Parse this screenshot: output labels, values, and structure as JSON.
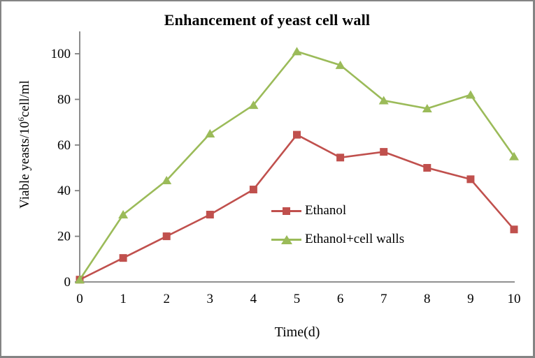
{
  "chart_data": {
    "type": "line",
    "title": "Enhancement of yeast cell wall",
    "xlabel": "Time(d)",
    "ylabel": "Viable yeasts/10⁶cell/ml",
    "ylabel_parts": {
      "prefix": "Viable yeasts/10",
      "sup": "6",
      "suffix": "cell/ml"
    },
    "x": [
      0,
      1,
      2,
      3,
      4,
      5,
      6,
      7,
      8,
      9,
      10
    ],
    "series": [
      {
        "name": "Ethanol",
        "marker": "square",
        "color": "#C0504D",
        "values": [
          1,
          10.5,
          20,
          29.5,
          40.5,
          64.5,
          54.5,
          57,
          50,
          45,
          23
        ]
      },
      {
        "name": "Ethanol+cell walls",
        "marker": "triangle",
        "color": "#9BBB59",
        "values": [
          1,
          29.5,
          44.5,
          65,
          77.5,
          101,
          95,
          79.5,
          76,
          82,
          55
        ]
      }
    ],
    "ylim": [
      0,
      100
    ],
    "y_ticks": [
      0,
      20,
      40,
      60,
      80,
      100
    ],
    "grid": "off",
    "legend_position": "inside-right-middle",
    "axis_color": "#808080",
    "text_color": "#000000"
  }
}
